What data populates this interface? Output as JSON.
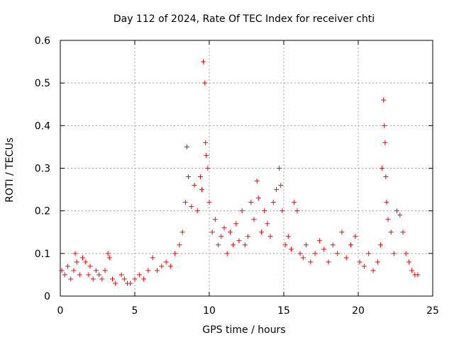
{
  "chart_data": {
    "type": "scatter",
    "title": "Day 112 of 2024, Rate Of TEC Index for receiver chti",
    "xlabel": "GPS time / hours",
    "ylabel": "ROTI / TECUs",
    "xlim": [
      0,
      25
    ],
    "ylim": [
      0,
      0.6
    ],
    "xticks": [
      0,
      5,
      10,
      15,
      20,
      25
    ],
    "yticks": [
      0,
      0.1,
      0.2,
      0.3,
      0.4,
      0.5,
      0.6
    ],
    "xtick_labels": [
      "0",
      "5",
      "10",
      "15",
      "20",
      "25"
    ],
    "ytick_labels": [
      "0",
      "0.1",
      "0.2",
      "0.3",
      "0.4",
      "0.5",
      "0.6"
    ],
    "grid": true,
    "marker": "+",
    "color": "#ff0000",
    "series": [
      {
        "name": "ROTI",
        "x": [
          0.1,
          0.3,
          0.5,
          0.7,
          0.9,
          1.0,
          1.1,
          1.3,
          1.5,
          1.7,
          1.9,
          2.0,
          2.2,
          2.4,
          2.6,
          2.8,
          3.0,
          3.2,
          3.3,
          3.5,
          3.7,
          4.1,
          4.3,
          4.5,
          4.7,
          5.0,
          5.3,
          5.6,
          5.9,
          6.2,
          6.5,
          6.8,
          7.1,
          7.4,
          7.7,
          8.0,
          8.2,
          8.4,
          8.5,
          8.6,
          8.8,
          9.0,
          9.2,
          9.4,
          9.5,
          9.6,
          9.7,
          9.75,
          9.8,
          9.9,
          10.0,
          10.2,
          10.4,
          10.6,
          10.8,
          11.0,
          11.2,
          11.4,
          11.6,
          11.8,
          12.0,
          12.2,
          12.4,
          12.6,
          12.8,
          13.0,
          13.2,
          13.3,
          13.5,
          13.7,
          13.9,
          14.1,
          14.3,
          14.5,
          14.7,
          14.8,
          14.9,
          15.1,
          15.3,
          15.5,
          15.7,
          15.9,
          16.1,
          16.3,
          16.5,
          16.8,
          17.1,
          17.4,
          17.7,
          18.0,
          18.3,
          18.6,
          18.9,
          19.2,
          19.5,
          19.8,
          20.1,
          20.4,
          20.7,
          21.0,
          21.3,
          21.5,
          21.6,
          21.7,
          21.75,
          21.8,
          21.85,
          21.9,
          22.0,
          22.2,
          22.4,
          22.6,
          22.8,
          23.0,
          23.2,
          23.4,
          23.6,
          23.8,
          24.0
        ],
        "y": [
          0.06,
          0.05,
          0.07,
          0.04,
          0.06,
          0.1,
          0.08,
          0.05,
          0.09,
          0.08,
          0.05,
          0.07,
          0.04,
          0.06,
          0.05,
          0.04,
          0.06,
          0.1,
          0.09,
          0.04,
          0.03,
          0.05,
          0.04,
          0.03,
          0.03,
          0.04,
          0.05,
          0.04,
          0.06,
          0.09,
          0.06,
          0.07,
          0.08,
          0.07,
          0.1,
          0.12,
          0.15,
          0.22,
          0.35,
          0.28,
          0.21,
          0.26,
          0.2,
          0.28,
          0.25,
          0.55,
          0.5,
          0.36,
          0.33,
          0.3,
          0.22,
          0.15,
          0.18,
          0.12,
          0.14,
          0.16,
          0.1,
          0.15,
          0.12,
          0.17,
          0.13,
          0.2,
          0.12,
          0.14,
          0.22,
          0.18,
          0.27,
          0.23,
          0.15,
          0.2,
          0.17,
          0.14,
          0.22,
          0.25,
          0.3,
          0.26,
          0.2,
          0.12,
          0.14,
          0.11,
          0.22,
          0.2,
          0.1,
          0.09,
          0.12,
          0.08,
          0.1,
          0.13,
          0.11,
          0.08,
          0.12,
          0.1,
          0.15,
          0.09,
          0.12,
          0.14,
          0.08,
          0.07,
          0.1,
          0.06,
          0.08,
          0.12,
          0.3,
          0.46,
          0.4,
          0.36,
          0.28,
          0.22,
          0.18,
          0.15,
          0.1,
          0.2,
          0.19,
          0.15,
          0.1,
          0.08,
          0.06,
          0.05,
          0.05
        ]
      }
    ]
  }
}
